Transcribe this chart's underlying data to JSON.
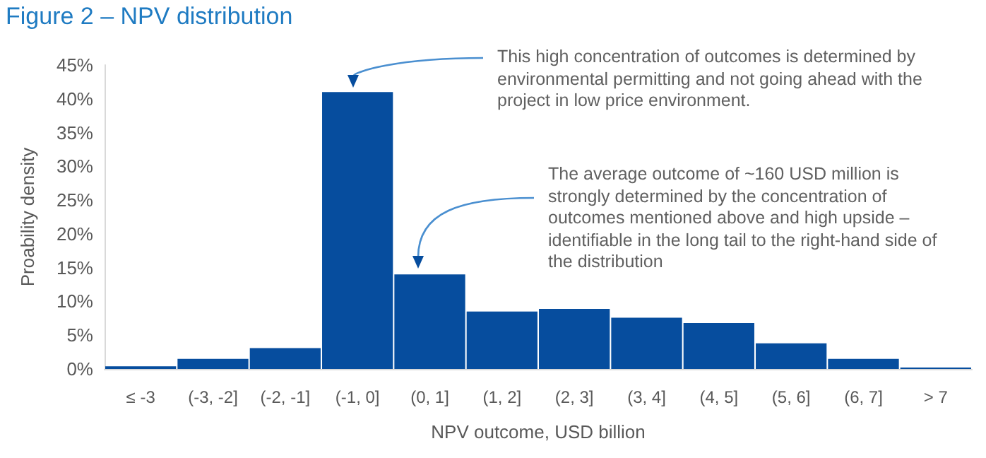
{
  "chart_data": {
    "type": "bar",
    "title": "Figure 2 – NPV distribution",
    "xlabel": "NPV outcome, USD billion",
    "ylabel": "Proability density",
    "categories": [
      "≤ -3",
      "(-3, -2]",
      "(-2, -1]",
      "(-1, 0]",
      "(0, 1]",
      "(1, 2]",
      "(2, 3]",
      "(3, 4]",
      "(4, 5]",
      "(5, 6]",
      "(6, 7]",
      "> 7"
    ],
    "values": [
      0.4,
      1.5,
      3.1,
      41.0,
      14.0,
      8.5,
      8.9,
      7.6,
      6.8,
      3.8,
      1.5,
      0.2
    ],
    "color": "#064d9e",
    "ylim": [
      0,
      45
    ],
    "yticks": [
      {
        "value": 0,
        "label": "0%"
      },
      {
        "value": 5,
        "label": "5%"
      },
      {
        "value": 10,
        "label": "10%"
      },
      {
        "value": 15,
        "label": "15%"
      },
      {
        "value": 20,
        "label": "20%"
      },
      {
        "value": 25,
        "label": "25%"
      },
      {
        "value": 30,
        "label": "30%"
      },
      {
        "value": 35,
        "label": "35%"
      },
      {
        "value": 40,
        "label": "40%"
      },
      {
        "value": 45,
        "label": "45%"
      }
    ],
    "grid": false,
    "annotations": [
      "This high concentration of outcomes is determined by environmental permitting and not going ahead with the project in low price environment.",
      "The average outcome of ~160 USD million is strongly determined by the concentration of outcomes mentioned above and high upside – identifiable in the long tail to the right-hand side of the distribution"
    ]
  }
}
